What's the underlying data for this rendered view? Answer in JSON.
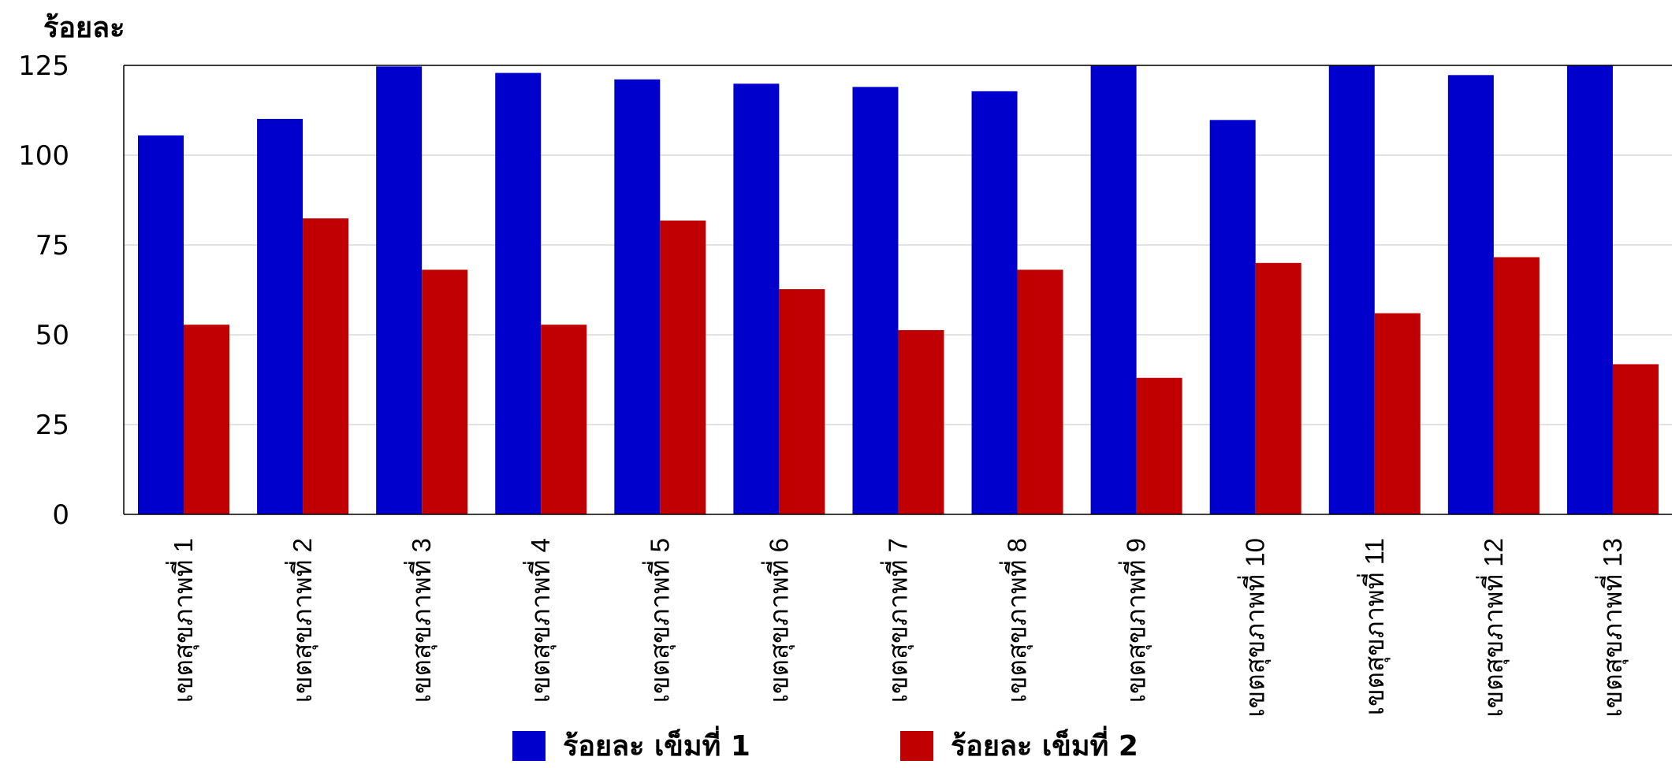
{
  "colors": {
    "series1": "#0000cc",
    "series2": "#c00000",
    "grid": "#d9d9d9",
    "axis": "#000000"
  },
  "chart_data": {
    "type": "bar",
    "ylabel": "ร้อยละ",
    "xlabel": "",
    "ylim": [
      0,
      125
    ],
    "yticks": [
      0,
      25,
      50,
      75,
      100,
      125
    ],
    "grid": true,
    "legend_position": "bottom",
    "categories": [
      "เขตสุขภาพที่ 1",
      "เขตสุขภาพที่ 2",
      "เขตสุขภาพที่ 3",
      "เขตสุขภาพที่ 4",
      "เขตสุขภาพที่ 5",
      "เขตสุขภาพที่ 6",
      "เขตสุขภาพที่ 7",
      "เขตสุขภาพที่ 8",
      "เขตสุขภาพที่ 9",
      "เขตสุขภาพที่ 10",
      "เขตสุขภาพที่ 11",
      "เขตสุขภาพที่ 12",
      "เขตสุขภาพที่ 13"
    ],
    "series": [
      {
        "name": "ร้อยละ เข็มที่ 1",
        "values": [
          105.5,
          110.1,
          124.7,
          122.9,
          121.1,
          119.9,
          119.0,
          117.8,
          125.0,
          109.8,
          125.0,
          122.3,
          125.0
        ]
      },
      {
        "name": "ร้อยละ เข็มที่ 2",
        "values": [
          52.8,
          82.4,
          68.1,
          52.8,
          81.8,
          62.7,
          51.3,
          68.1,
          38.0,
          70.0,
          56.0,
          71.6,
          41.8
        ]
      }
    ]
  }
}
